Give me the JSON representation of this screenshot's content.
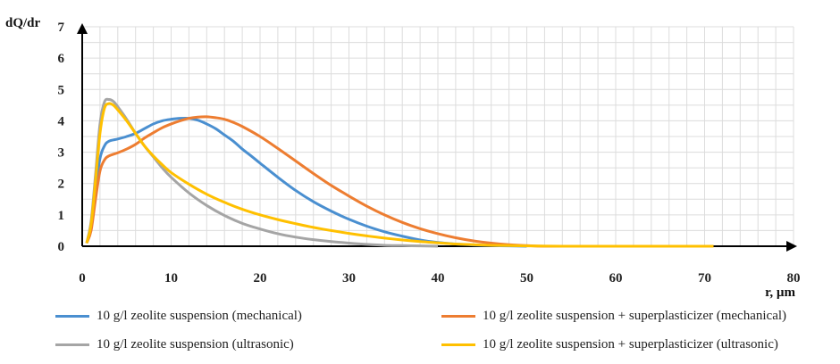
{
  "chart_data": {
    "type": "line",
    "xlabel": "r, µm",
    "ylabel": "dQ/dr",
    "xlim": [
      0,
      80
    ],
    "ylim": [
      0,
      7
    ],
    "x_ticks": [
      "0",
      "10",
      "20",
      "30",
      "40",
      "50",
      "60",
      "70",
      "80"
    ],
    "y_ticks": [
      "0",
      "1",
      "2",
      "3",
      "4",
      "5",
      "6",
      "7"
    ],
    "grid": true,
    "legend_position": "bottom",
    "series": [
      {
        "name": "10 g/l zeolite suspension (mechanical)",
        "color": "#4a8fd0",
        "points": [
          [
            0.5,
            0.1
          ],
          [
            1,
            0.6
          ],
          [
            1.5,
            1.8
          ],
          [
            2,
            2.8
          ],
          [
            2.5,
            3.2
          ],
          [
            3,
            3.35
          ],
          [
            4,
            3.42
          ],
          [
            5,
            3.5
          ],
          [
            6,
            3.6
          ],
          [
            7,
            3.75
          ],
          [
            8,
            3.9
          ],
          [
            9,
            4.0
          ],
          [
            10,
            4.05
          ],
          [
            11,
            4.08
          ],
          [
            12,
            4.08
          ],
          [
            13,
            4.02
          ],
          [
            14,
            3.9
          ],
          [
            15,
            3.75
          ],
          [
            16,
            3.55
          ],
          [
            17,
            3.35
          ],
          [
            18,
            3.1
          ],
          [
            19,
            2.88
          ],
          [
            20,
            2.65
          ],
          [
            22,
            2.2
          ],
          [
            24,
            1.78
          ],
          [
            26,
            1.42
          ],
          [
            28,
            1.12
          ],
          [
            30,
            0.86
          ],
          [
            32,
            0.64
          ],
          [
            34,
            0.46
          ],
          [
            36,
            0.32
          ],
          [
            38,
            0.2
          ],
          [
            40,
            0.12
          ],
          [
            42,
            0.07
          ],
          [
            44,
            0.04
          ],
          [
            46,
            0.02
          ],
          [
            48,
            0.01
          ],
          [
            50,
            0.0
          ]
        ]
      },
      {
        "name": "10 g/l zeolite suspension + superplasticizer (mechanical)",
        "color": "#ed7d31",
        "points": [
          [
            0.5,
            0.1
          ],
          [
            1,
            0.5
          ],
          [
            1.5,
            1.5
          ],
          [
            2,
            2.4
          ],
          [
            2.5,
            2.75
          ],
          [
            3,
            2.88
          ],
          [
            4,
            2.98
          ],
          [
            5,
            3.1
          ],
          [
            6,
            3.25
          ],
          [
            7,
            3.45
          ],
          [
            8,
            3.62
          ],
          [
            9,
            3.78
          ],
          [
            10,
            3.9
          ],
          [
            11,
            4.0
          ],
          [
            12,
            4.08
          ],
          [
            13,
            4.12
          ],
          [
            14,
            4.13
          ],
          [
            15,
            4.1
          ],
          [
            16,
            4.05
          ],
          [
            17,
            3.95
          ],
          [
            18,
            3.82
          ],
          [
            20,
            3.5
          ],
          [
            22,
            3.12
          ],
          [
            24,
            2.72
          ],
          [
            26,
            2.32
          ],
          [
            28,
            1.94
          ],
          [
            30,
            1.6
          ],
          [
            32,
            1.28
          ],
          [
            34,
            1.0
          ],
          [
            36,
            0.76
          ],
          [
            38,
            0.56
          ],
          [
            40,
            0.4
          ],
          [
            42,
            0.27
          ],
          [
            44,
            0.17
          ],
          [
            46,
            0.1
          ],
          [
            48,
            0.05
          ],
          [
            50,
            0.02
          ],
          [
            52,
            0.0
          ],
          [
            56,
            0.0
          ],
          [
            60,
            0.0
          ],
          [
            64,
            0.0
          ],
          [
            68,
            0.0
          ],
          [
            71,
            0.0
          ]
        ]
      },
      {
        "name": "10 g/l zeolite suspension (ultrasonic)",
        "color": "#a5a5a5",
        "points": [
          [
            0.5,
            0.1
          ],
          [
            1,
            0.8
          ],
          [
            1.5,
            2.3
          ],
          [
            2,
            3.9
          ],
          [
            2.5,
            4.6
          ],
          [
            3,
            4.68
          ],
          [
            3.5,
            4.62
          ],
          [
            4,
            4.45
          ],
          [
            5,
            4.05
          ],
          [
            6,
            3.6
          ],
          [
            7,
            3.2
          ],
          [
            8,
            2.85
          ],
          [
            9,
            2.5
          ],
          [
            10,
            2.2
          ],
          [
            12,
            1.7
          ],
          [
            14,
            1.3
          ],
          [
            16,
            0.98
          ],
          [
            18,
            0.73
          ],
          [
            20,
            0.55
          ],
          [
            22,
            0.4
          ],
          [
            24,
            0.29
          ],
          [
            26,
            0.21
          ],
          [
            28,
            0.15
          ],
          [
            30,
            0.1
          ],
          [
            32,
            0.06
          ],
          [
            34,
            0.03
          ],
          [
            36,
            0.02
          ],
          [
            38,
            0.01
          ],
          [
            40,
            0.0
          ]
        ]
      },
      {
        "name": "10 g/l zeolite suspension + superplasticizer (ultrasonic)",
        "color": "#ffc000",
        "points": [
          [
            0.5,
            0.1
          ],
          [
            1,
            0.7
          ],
          [
            1.5,
            2.1
          ],
          [
            2,
            3.6
          ],
          [
            2.5,
            4.4
          ],
          [
            3,
            4.55
          ],
          [
            3.5,
            4.5
          ],
          [
            4,
            4.35
          ],
          [
            5,
            4.0
          ],
          [
            6,
            3.6
          ],
          [
            7,
            3.2
          ],
          [
            8,
            2.88
          ],
          [
            9,
            2.6
          ],
          [
            10,
            2.35
          ],
          [
            12,
            1.98
          ],
          [
            14,
            1.66
          ],
          [
            16,
            1.4
          ],
          [
            18,
            1.18
          ],
          [
            20,
            1.0
          ],
          [
            22,
            0.85
          ],
          [
            24,
            0.72
          ],
          [
            26,
            0.6
          ],
          [
            28,
            0.5
          ],
          [
            30,
            0.41
          ],
          [
            32,
            0.33
          ],
          [
            34,
            0.26
          ],
          [
            36,
            0.2
          ],
          [
            38,
            0.15
          ],
          [
            40,
            0.11
          ],
          [
            42,
            0.07
          ],
          [
            44,
            0.05
          ],
          [
            46,
            0.03
          ],
          [
            48,
            0.02
          ],
          [
            50,
            0.01
          ],
          [
            54,
            0.0
          ],
          [
            60,
            0.0
          ],
          [
            66,
            0.0
          ],
          [
            71,
            0.0
          ]
        ]
      }
    ]
  }
}
